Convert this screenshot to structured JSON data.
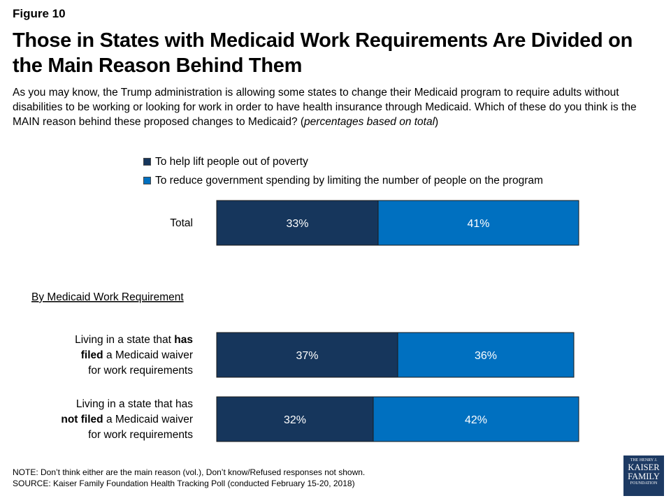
{
  "figure_label": "Figure 10",
  "title": "Those in States with Medicaid Work Requirements Are Divided on the Main Reason Behind Them",
  "question": {
    "text": "As you may know, the Trump administration is allowing some states to change their Medicaid program to require adults without disabilities to be working or looking for work in order to have health insurance through Medicaid. Which of these do you think is the MAIN reason behind these proposed changes to Medicaid? (",
    "italic": "percentages based on total",
    "close": ")"
  },
  "notes": {
    "note": "NOTE: Don’t think either are the main reason (vol.), Don’t know/Refused responses not shown.",
    "source": "SOURCE: Kaiser Family Foundation Health Tracking Poll (conducted February 15-20, 2018)"
  },
  "logo": {
    "line1": "THE HENRY J.",
    "line2": "KAISER",
    "line3": "FAMILY",
    "line4": "FOUNDATION"
  },
  "colors": {
    "series1": "#16365c",
    "series2": "#0070c0"
  },
  "chart_data": {
    "type": "bar",
    "orientation": "horizontal",
    "stacked": true,
    "section_label": "By Medicaid Work Requirement",
    "categories": [
      {
        "lines": [
          [
            {
              "t": "Total",
              "b": false
            }
          ]
        ]
      },
      {
        "lines": [
          [
            {
              "t": "Living in a state that ",
              "b": false
            },
            {
              "t": "has",
              "b": true
            }
          ],
          [
            {
              "t": "filed",
              "b": true
            },
            {
              "t": " a Medicaid waiver",
              "b": false
            }
          ],
          [
            {
              "t": "for work requirements",
              "b": false
            }
          ]
        ]
      },
      {
        "lines": [
          [
            {
              "t": "Living in a state that has",
              "b": false
            }
          ],
          [
            {
              "t": "not filed",
              "b": true
            },
            {
              "t": " a Medicaid waiver",
              "b": false
            }
          ],
          [
            {
              "t": "for work requirements",
              "b": false
            }
          ]
        ]
      }
    ],
    "series": [
      {
        "name": "To help lift people out of poverty",
        "values": [
          33,
          37,
          32
        ],
        "labels": [
          "33%",
          "37%",
          "32%"
        ]
      },
      {
        "name": "To reduce government spending by limiting the number of people on the program",
        "values": [
          41,
          36,
          42
        ],
        "labels": [
          "41%",
          "36%",
          "42%"
        ]
      }
    ],
    "xlim": [
      0,
      100
    ],
    "grid": false,
    "legend_position": "top"
  }
}
